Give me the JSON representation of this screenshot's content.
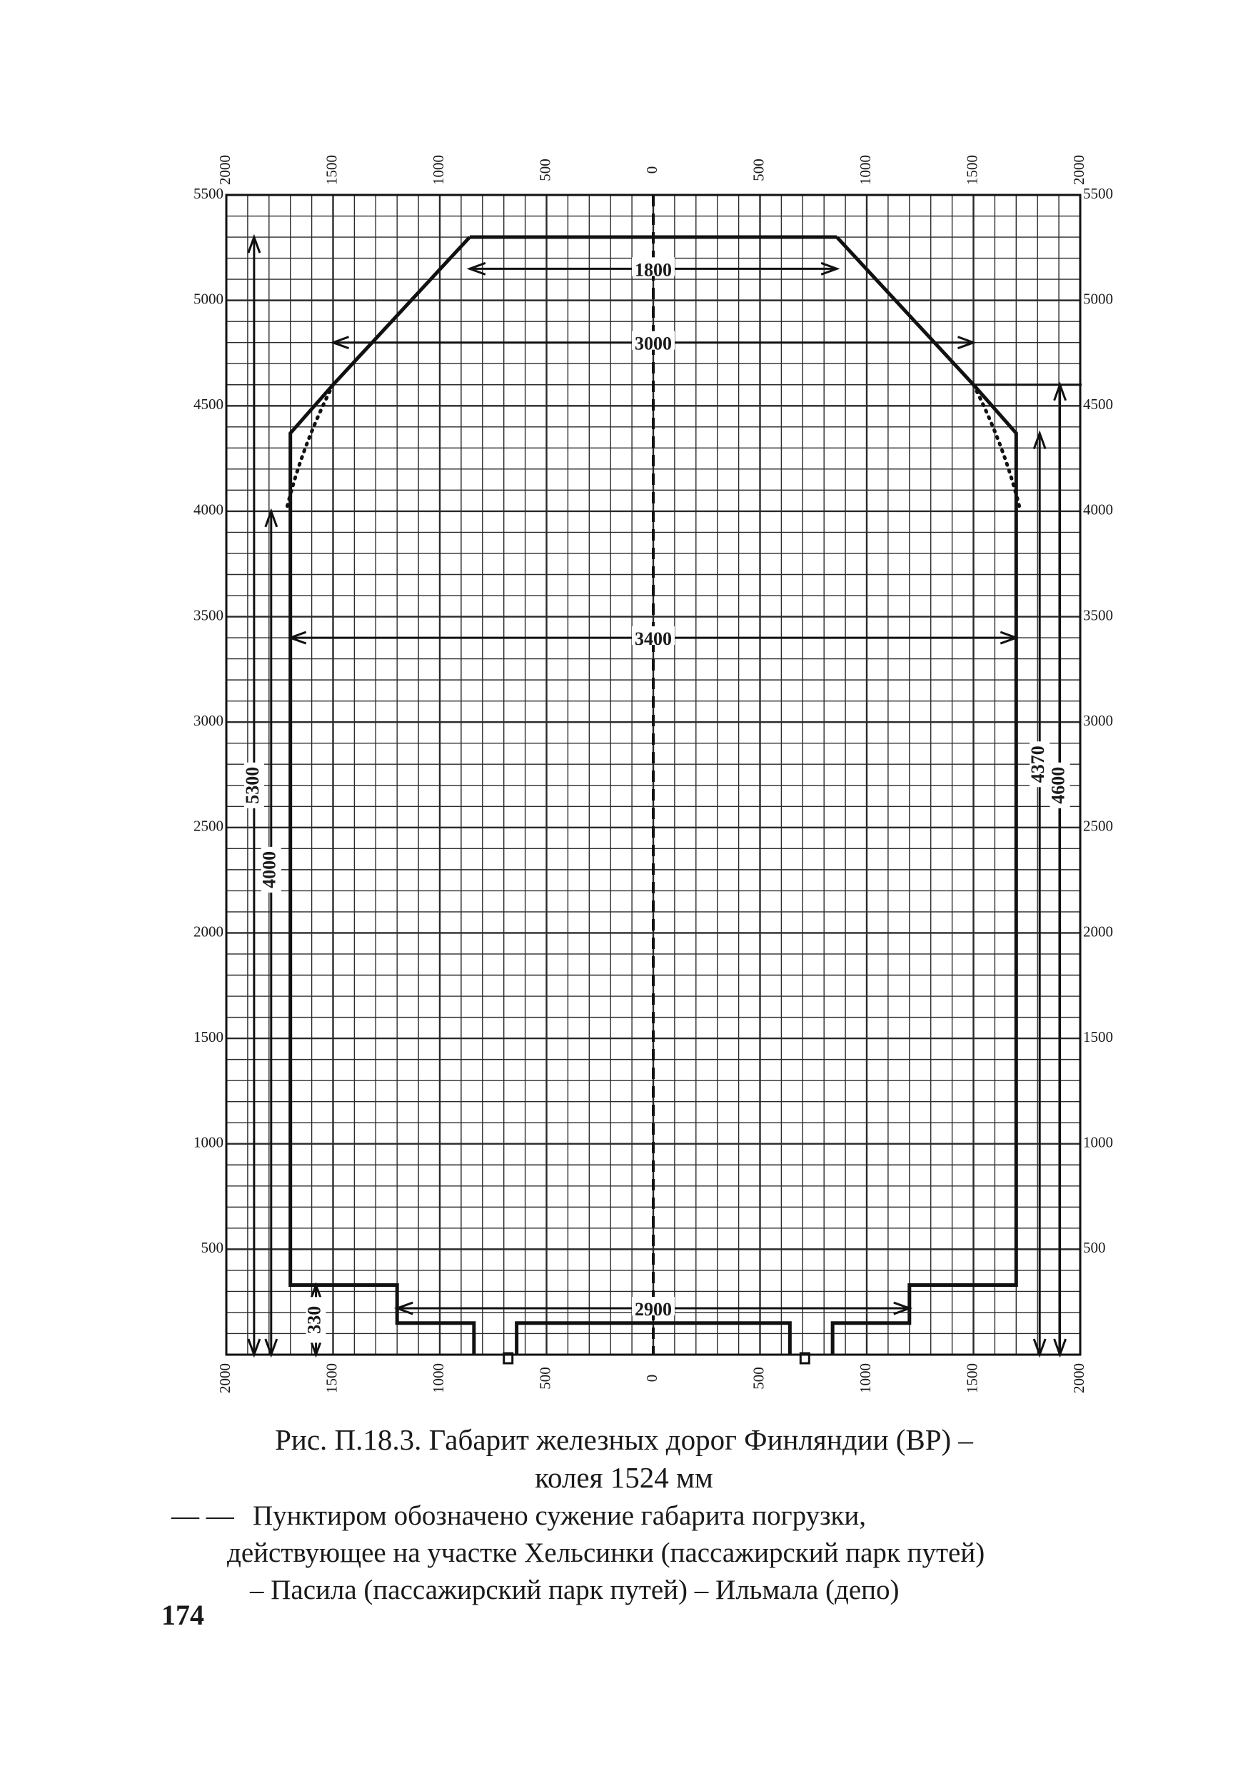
{
  "figure": {
    "x_axis_ticks": [
      "2000",
      "1500",
      "1000",
      "500",
      "0",
      "500",
      "1000",
      "1500",
      "2000"
    ],
    "y_axis_ticks": [
      "500",
      "1000",
      "1500",
      "2000",
      "2500",
      "3000",
      "3500",
      "4000",
      "4500",
      "5000",
      "5500"
    ],
    "dimensions": {
      "top_width": "1800",
      "upper_width": "3000",
      "body_width": "3400",
      "bottom_width": "2900",
      "total_height": "5300",
      "side_height": "4000",
      "right_height": "4370",
      "right_outer_height": "4600",
      "step_height": "330"
    },
    "outline_color": "#111111",
    "grid_color": "#2a2a2a"
  },
  "caption": {
    "line1": "Рис. П.18.3. Габарит железных дорог Финляндии (ВР) –",
    "line2": "колея 1524 мм"
  },
  "legend": {
    "dash_marker": "— —",
    "line1": "Пунктиром обозначено сужение габарита погрузки,",
    "line2": "действующее на участке Хельсинки (пассажирский парк путей)",
    "line3": "– Пасила (пассажирский парк путей) – Ильмала (депо)"
  },
  "page_number": "174"
}
